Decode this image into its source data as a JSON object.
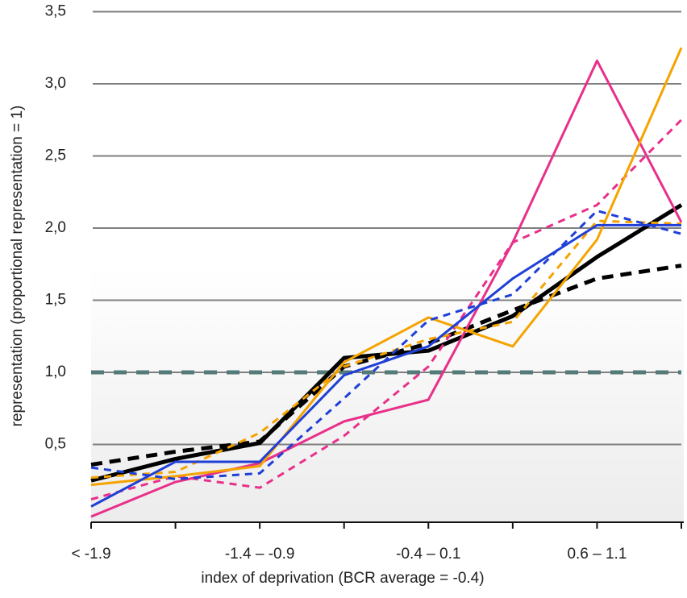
{
  "chart_data": {
    "type": "line",
    "x_label": "index of deprivation (BCR average = -0.4)",
    "y_label": "representation (proportional representation = 1)",
    "categories": [
      "< -1.9",
      null,
      "-1.4 – -0.9",
      null,
      "-0.4 – 0.1",
      null,
      "0.6 – 1.1",
      null
    ],
    "series": [
      {
        "color": "#000000",
        "dashed": false,
        "values": [
          0.25,
          0.4,
          0.51,
          1.1,
          1.15,
          1.39,
          1.8,
          2.16
        ]
      },
      {
        "color": "#000000",
        "dashed": true,
        "values": [
          0.36,
          0.45,
          0.52,
          1.04,
          1.2,
          1.43,
          1.65,
          1.74
        ]
      },
      {
        "color": "#e8308a",
        "dashed": false,
        "values": [
          0,
          0.24,
          0.37,
          0.66,
          0.81,
          1.9,
          3.16,
          2.04
        ]
      },
      {
        "color": "#e8308a",
        "dashed": true,
        "values": [
          0.12,
          0.28,
          0.2,
          0.56,
          1.04,
          1.9,
          2.16,
          2.75
        ]
      },
      {
        "color": "#f5a300",
        "dashed": false,
        "values": [
          0.22,
          0.28,
          0.35,
          1.07,
          1.38,
          1.18,
          1.92,
          3.25
        ]
      },
      {
        "color": "#f5a300",
        "dashed": true,
        "values": [
          0.27,
          0.31,
          0.58,
          1.04,
          1.23,
          1.35,
          2.05,
          2.03
        ]
      },
      {
        "color": "#1f3fd6",
        "dashed": false,
        "values": [
          0.07,
          0.38,
          0.38,
          0.98,
          1.18,
          1.65,
          2.02,
          2.02
        ]
      },
      {
        "color": "#1f3fd6",
        "dashed": true,
        "values": [
          0.34,
          0.26,
          0.3,
          0.82,
          1.36,
          1.54,
          2.12,
          1.96
        ]
      }
    ],
    "reference_line": {
      "value": 1,
      "color": "#557a7a"
    },
    "ylim": [
      0,
      3.5
    ],
    "yticks": [
      {
        "value": 0.5,
        "label": "0,5"
      },
      {
        "value": 1,
        "label": "1,0"
      },
      {
        "value": 1.5,
        "label": "1,5"
      },
      {
        "value": 2,
        "label": "2,0"
      },
      {
        "value": 2.5,
        "label": "2,5"
      },
      {
        "value": 3,
        "label": "3,0"
      },
      {
        "value": 3.5,
        "label": "3,5"
      }
    ],
    "grid": true
  }
}
